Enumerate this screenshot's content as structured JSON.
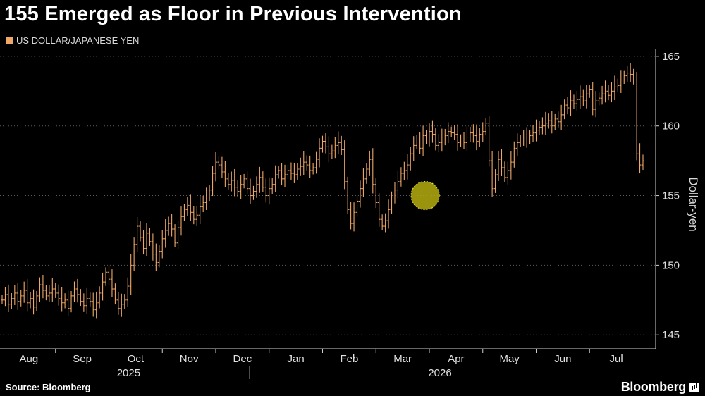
{
  "chart_data": {
    "type": "line",
    "style": "ohlc-ticks",
    "title": "155 Emerged as Floor in Previous Intervention",
    "legend": [
      "US DOLLAR/JAPANESE YEN"
    ],
    "ylabel": "Dollar-yen",
    "source": "Source: Bloomberg",
    "brand": "Bloomberg",
    "ylim": [
      144,
      165.5
    ],
    "yticks": [
      145,
      150,
      155,
      160,
      165
    ],
    "month_labels": [
      "Aug",
      "Sep",
      "Oct",
      "Nov",
      "Dec",
      "Jan",
      "Feb",
      "Mar",
      "Apr",
      "May",
      "Jun",
      "Jul"
    ],
    "year_labels": [
      "2025",
      "2026"
    ],
    "series_color": "#f0a868",
    "highlight": {
      "index": 134,
      "value": 155,
      "color": "#b5ad0f"
    },
    "series": [
      {
        "name": "US DOLLAR/JAPANESE YEN",
        "values": [
          147.5,
          147.9,
          147.2,
          147.6,
          148.0,
          147.4,
          147.8,
          148.2,
          147.3,
          147.6,
          147.0,
          147.8,
          148.6,
          148.2,
          147.8,
          148.0,
          148.3,
          148.0,
          147.6,
          147.3,
          147.5,
          146.9,
          147.8,
          148.3,
          147.9,
          147.4,
          147.1,
          147.6,
          147.4,
          146.8,
          147.3,
          148.0,
          148.8,
          149.5,
          149.0,
          148.3,
          147.5,
          146.9,
          147.2,
          147.5,
          148.5,
          150.0,
          151.5,
          152.8,
          152.0,
          151.2,
          152.3,
          151.7,
          150.8,
          150.2,
          151.0,
          151.9,
          152.5,
          153.0,
          152.6,
          151.6,
          152.7,
          153.5,
          154.0,
          154.3,
          153.8,
          153.3,
          153.6,
          154.2,
          154.5,
          154.9,
          155.4,
          156.6,
          157.4,
          157.2,
          156.7,
          156.2,
          155.8,
          156.1,
          155.6,
          155.3,
          155.8,
          156.2,
          155.5,
          155.0,
          155.3,
          155.8,
          156.3,
          155.6,
          155.0,
          155.5,
          155.8,
          156.5,
          156.8,
          156.2,
          156.5,
          156.8,
          156.6,
          156.5,
          156.9,
          157.1,
          157.4,
          157.2,
          156.8,
          157.0,
          157.6,
          158.4,
          158.9,
          158.5,
          158.0,
          158.2,
          158.6,
          158.8,
          158.3,
          156.0,
          154.0,
          153.0,
          153.8,
          154.6,
          155.5,
          156.2,
          156.9,
          157.6,
          155.8,
          154.5,
          153.3,
          152.8,
          153.2,
          154.0,
          154.9,
          155.4,
          156.0,
          156.6,
          156.8,
          157.2,
          158.0,
          158.6,
          159.0,
          158.4,
          159.3,
          159.0,
          159.6,
          159.4,
          158.6,
          158.8,
          159.0,
          159.3,
          159.6,
          159.5,
          159.4,
          158.8,
          159.0,
          158.8,
          159.2,
          159.5,
          159.3,
          158.9,
          159.4,
          159.6,
          160.2,
          157.5,
          155.5,
          156.5,
          157.6,
          157.0,
          156.3,
          156.8,
          157.4,
          158.4,
          158.8,
          159.0,
          159.2,
          159.0,
          159.3,
          159.5,
          159.7,
          159.9,
          160.0,
          160.2,
          160.4,
          160.0,
          160.5,
          160.3,
          160.8,
          161.5,
          161.3,
          161.8,
          161.6,
          161.9,
          162.1,
          161.8,
          162.3,
          162.6,
          161.2,
          161.8,
          162.0,
          162.3,
          162.5,
          162.2,
          162.5,
          162.8,
          162.9,
          163.3,
          163.6,
          163.8,
          163.7,
          163.3,
          158.0,
          157.2,
          157.5
        ]
      }
    ]
  }
}
